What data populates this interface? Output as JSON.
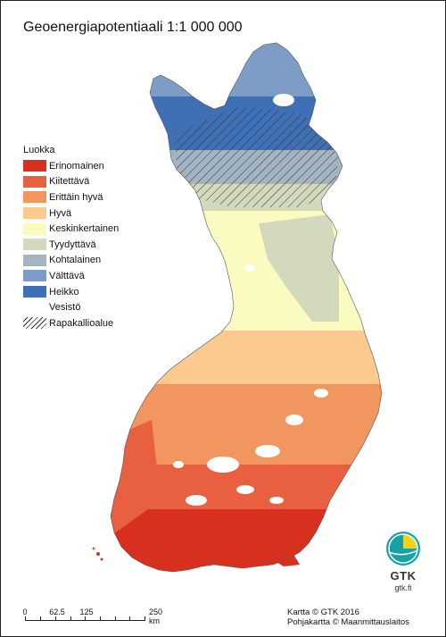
{
  "title": "Geoenergiapotentiaali 1:1 000 000",
  "legend": {
    "heading": "Luokka",
    "classes": [
      {
        "label": "Erinomainen",
        "color": "#d7301f"
      },
      {
        "label": "Kiitettävä",
        "color": "#e8603f"
      },
      {
        "label": "Erittäin hyvä",
        "color": "#f2965f"
      },
      {
        "label": "Hyvä",
        "color": "#fcc98f"
      },
      {
        "label": "Keskinkertainen",
        "color": "#fbfac0"
      },
      {
        "label": "Tyydyttävä",
        "color": "#d2d9bd"
      },
      {
        "label": "Kohtalainen",
        "color": "#a3b4c3"
      },
      {
        "label": "Välttävä",
        "color": "#7d9dc6"
      },
      {
        "label": "Heikko",
        "color": "#3f6fb5"
      }
    ],
    "water_label": "Vesistö",
    "rapakivi_label": "Rapakallioalue"
  },
  "scale_bar": {
    "labels": [
      "0",
      "62.5",
      "125",
      "250 km"
    ]
  },
  "credits": {
    "line1": "Kartta © GTK 2016",
    "line2": "Pohjakartta © Maanmittauslaitos"
  },
  "logo": {
    "name": "GTK",
    "url": "gtk.fi"
  }
}
